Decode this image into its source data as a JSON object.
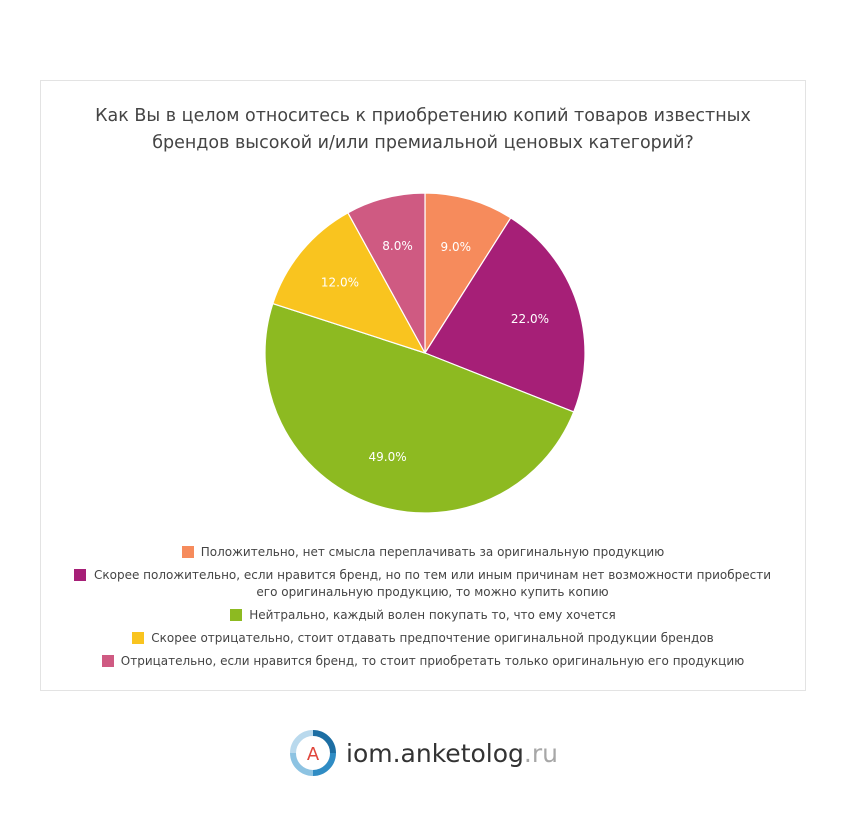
{
  "chart_data": {
    "type": "pie",
    "title": "Как Вы в целом относитесь к приобретению копий товаров известных брендов высокой и/или премиальной ценовых категорий?",
    "categories": [
      "Положительно, нет смысла переплачивать за оригинальную продукцию",
      "Скорее положительно, если нравится бренд, но по тем или иным причинам нет возможности приобрести его оригинальную продукцию, то можно купить копию",
      "Нейтрально, каждый волен покупать то, что ему хочется",
      "Скорее отрицательно, стоит отдавать предпочтение оригинальной продукции брендов",
      "Отрицательно, если нравится бренд, то стоит приобретать только оригинальную его продукцию"
    ],
    "values": [
      9.0,
      22.0,
      49.0,
      12.0,
      8.0
    ],
    "labels": [
      "9.0%",
      "22.0%",
      "49.0%",
      "12.0%",
      "8.0%"
    ],
    "colors": [
      "#f68b5c",
      "#a61f77",
      "#8dba21",
      "#f9c41f",
      "#cf5a82"
    ],
    "legend_position": "bottom",
    "start_angle": "top, clockwise"
  },
  "footer": {
    "logo_icon": "anketolog-logo-icon",
    "logo_letter": "A",
    "brand": "iom.anketolog",
    "tld": ".ru"
  }
}
